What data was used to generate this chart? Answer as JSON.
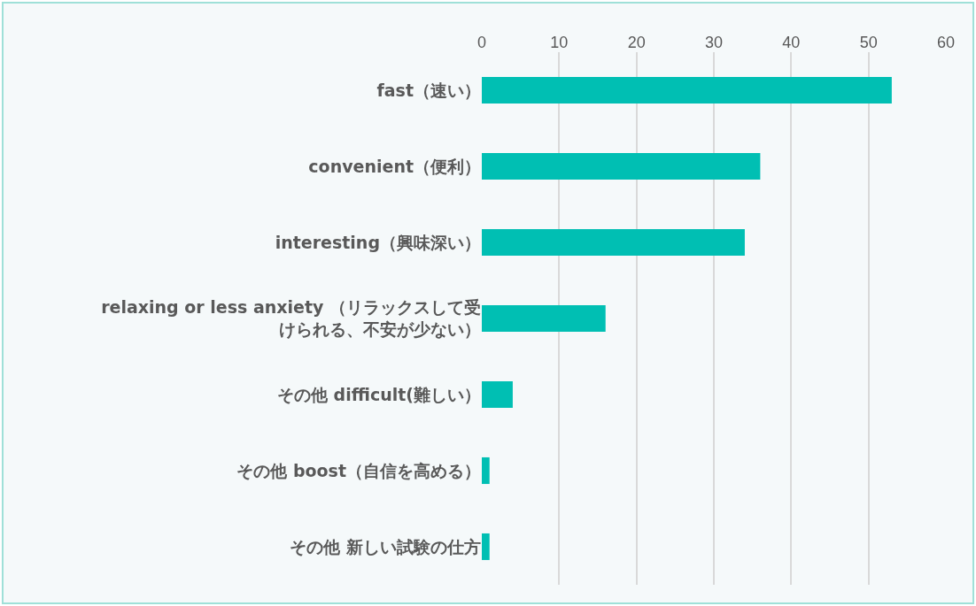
{
  "chart_data": {
    "type": "bar",
    "orientation": "horizontal",
    "categories": [
      "fast（速い）",
      "convenient（便利）",
      "interesting（興味深い）",
      "relaxing or less anxiety （リラックスして受けられる、不安が少ない）",
      "その他 difficult(難しい）",
      "その他 boost（自信を高める）",
      "その他 新しい試験の仕方"
    ],
    "values": [
      53,
      36,
      34,
      16,
      4,
      1,
      1
    ],
    "color": "#00bfb3",
    "xlim": [
      0,
      60
    ],
    "xticks": [
      0,
      10,
      20,
      30,
      40,
      50,
      60
    ],
    "grid": "x"
  }
}
